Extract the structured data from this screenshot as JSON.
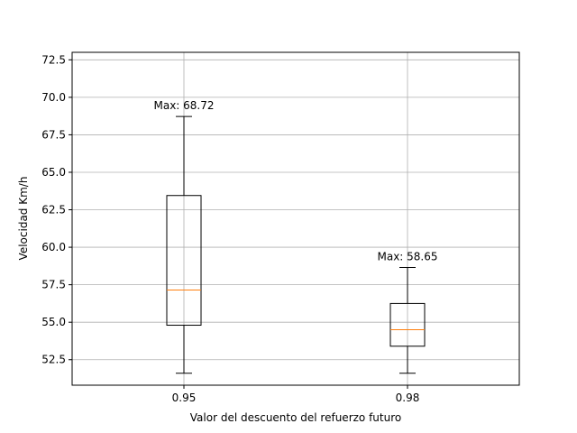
{
  "chart_data": {
    "type": "box",
    "title": "",
    "xlabel": "Valor del descuento del refuerzo futuro",
    "ylabel": "Velocidad Km/h",
    "ylim": [
      50.8,
      73.0
    ],
    "yticks": [
      "52.5",
      "55.0",
      "57.5",
      "60.0",
      "62.5",
      "65.0",
      "67.5",
      "70.0",
      "72.5"
    ],
    "grid": true,
    "categories": [
      "0.95",
      "0.98"
    ],
    "boxes": [
      {
        "category": "0.95",
        "whisker_low": 51.6,
        "q1": 54.8,
        "median": 57.15,
        "q3": 63.45,
        "whisker_high": 68.72,
        "annotation": "Max: 68.72"
      },
      {
        "category": "0.98",
        "whisker_low": 51.6,
        "q1": 53.4,
        "median": 54.5,
        "q3": 56.25,
        "whisker_high": 58.65,
        "annotation": "Max: 58.65"
      }
    ],
    "colors": {
      "box": "#000000",
      "median": "#ff7f0e",
      "grid": "#b0b0b0"
    }
  }
}
